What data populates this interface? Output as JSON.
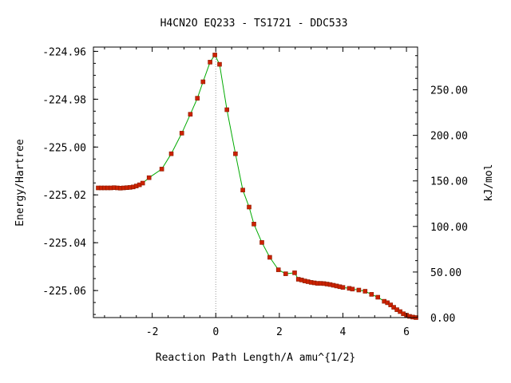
{
  "chart_data": {
    "type": "scatter",
    "title": "H4CN2O   EQ233 - TS1721 - DDC533",
    "xlabel": "Reaction Path Length/A amu^{1/2}",
    "ylabel": "Energy/Hartree",
    "y2label": "kJ/mol",
    "xlim": [
      -3.85,
      6.35
    ],
    "ylim": [
      -225.0713,
      -224.9582
    ],
    "y2lim": [
      0,
      296.9
    ],
    "x_ticks": [
      -2,
      0,
      2,
      4,
      6
    ],
    "x_tick_labels": [
      "-2",
      "0",
      "2",
      "4",
      "6"
    ],
    "y_ticks": [
      -224.96,
      -224.98,
      -225.0,
      -225.02,
      -225.04,
      -225.06
    ],
    "y_tick_labels": [
      "-224.96",
      "-224.98",
      "-225.00",
      "-225.02",
      "-225.04",
      "-225.06"
    ],
    "y2_ticks": [
      0,
      50,
      100,
      150,
      200,
      250
    ],
    "y2_tick_labels": [
      "0.00",
      "50.00",
      "100.00",
      "150.00",
      "200.00",
      "250.00"
    ],
    "grid": false,
    "ts_line_x": 0,
    "colors": {
      "marker": "#cc2200",
      "marker_edge": "#8b1a00",
      "line": "#00aa00",
      "ts_line": "#999999"
    },
    "series": [
      {
        "points": [
          [
            -3.7,
            -225.0171
          ],
          [
            -3.6,
            -225.0171
          ],
          [
            -3.5,
            -225.0171
          ],
          [
            -3.4,
            -225.0171
          ],
          [
            -3.3,
            -225.0171
          ],
          [
            -3.2,
            -225.017
          ],
          [
            -3.1,
            -225.0171
          ],
          [
            -3.0,
            -225.0172
          ],
          [
            -2.9,
            -225.0171
          ],
          [
            -2.8,
            -225.017
          ],
          [
            -2.7,
            -225.0169
          ],
          [
            -2.6,
            -225.0167
          ],
          [
            -2.5,
            -225.0163
          ],
          [
            -2.4,
            -225.0158
          ],
          [
            -2.3,
            -225.0151
          ],
          [
            -2.1,
            -225.0128
          ],
          [
            -1.7,
            -225.0092
          ],
          [
            -1.4,
            -225.0028
          ],
          [
            -1.07,
            -224.9942
          ],
          [
            -0.8,
            -224.9863
          ],
          [
            -0.58,
            -224.9796
          ],
          [
            -0.4,
            -224.9727
          ],
          [
            -0.18,
            -224.9645
          ],
          [
            -0.03,
            -224.9615
          ],
          [
            0.12,
            -224.9654
          ],
          [
            0.35,
            -224.9844
          ],
          [
            0.62,
            -225.0028
          ],
          [
            0.85,
            -225.018
          ],
          [
            1.05,
            -225.0251
          ],
          [
            1.2,
            -225.0322
          ],
          [
            1.45,
            -225.0399
          ],
          [
            1.7,
            -225.0461
          ],
          [
            1.97,
            -225.0513
          ],
          [
            2.2,
            -225.053
          ],
          [
            2.48,
            -225.0526
          ],
          [
            2.6,
            -225.0553
          ],
          [
            2.7,
            -225.0556
          ],
          [
            2.8,
            -225.056
          ],
          [
            2.9,
            -225.0563
          ],
          [
            3.0,
            -225.0566
          ],
          [
            3.1,
            -225.0568
          ],
          [
            3.2,
            -225.057
          ],
          [
            3.3,
            -225.057
          ],
          [
            3.4,
            -225.0571
          ],
          [
            3.5,
            -225.0573
          ],
          [
            3.6,
            -225.0575
          ],
          [
            3.7,
            -225.0578
          ],
          [
            3.8,
            -225.0581
          ],
          [
            3.9,
            -225.0584
          ],
          [
            4.0,
            -225.0587
          ],
          [
            4.2,
            -225.0591
          ],
          [
            4.3,
            -225.0594
          ],
          [
            4.5,
            -225.0598
          ],
          [
            4.7,
            -225.0603
          ],
          [
            4.9,
            -225.0616
          ],
          [
            5.1,
            -225.0628
          ],
          [
            5.3,
            -225.0645
          ],
          [
            5.4,
            -225.0651
          ],
          [
            5.5,
            -225.066
          ],
          [
            5.6,
            -225.067
          ],
          [
            5.7,
            -225.068
          ],
          [
            5.8,
            -225.0688
          ],
          [
            5.9,
            -225.0697
          ],
          [
            6.0,
            -225.0703
          ],
          [
            6.1,
            -225.0708
          ],
          [
            6.2,
            -225.0711
          ],
          [
            6.3,
            -225.0713
          ]
        ]
      }
    ]
  }
}
